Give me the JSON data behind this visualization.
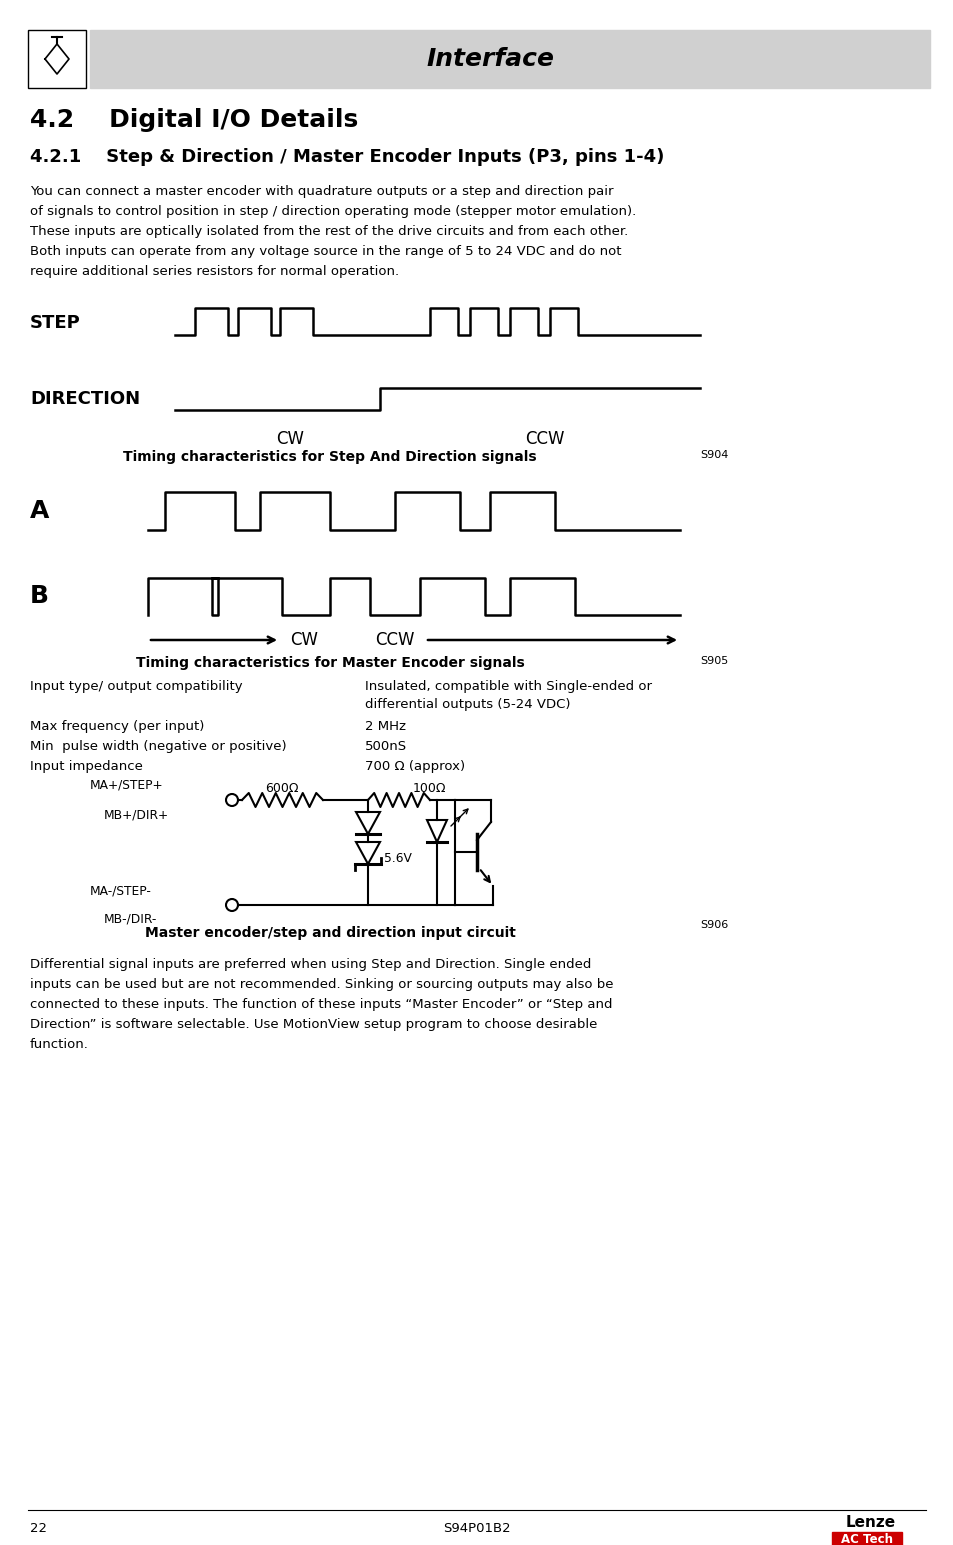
{
  "header_text": "Interface",
  "sec_title": "4.2    Digital I/O Details",
  "subsec_title": "4.2.1    Step & Direction / Master Encoder Inputs (P3, pins 1-4)",
  "body_para": "You can connect a master encoder with quadrature outputs or a step and direction pair\nof signals to control position in step / direction operating mode (stepper motor emulation).\nThese inputs are optically isolated from the rest of the drive circuits and from each other.\nBoth inputs can operate from any voltage source in the range of 5 to 24 VDC and do not\nrequire additional series resistors for normal operation.",
  "step_label": "STEP",
  "dir_label": "DIRECTION",
  "cw1": "CW",
  "ccw1": "CCW",
  "caption1": "Timing characteristics for Step And Direction signals",
  "caption1_ref": "S904",
  "a_label": "A",
  "b_label": "B",
  "cw2": "CW",
  "ccw2": "CCW",
  "caption2": "Timing characteristics for Master Encoder signals",
  "caption2_ref": "S905",
  "spec1_label": "Input type/ output compatibility",
  "spec1_val_line1": "Insulated, compatible with Single-ended or",
  "spec1_val_line2": "differential outputs (5-24 VDC)",
  "spec2_label": "Max frequency (per input)",
  "spec2_val": "2 MHz",
  "spec3_label": "Min  pulse width (negative or positive)",
  "spec3_val": "500nS",
  "spec4_label": "Input impedance",
  "spec4_val": "700 Ω (approx)",
  "circuit_r1": "600Ω",
  "circuit_r2": "100Ω",
  "circuit_zv": "5.6V",
  "ma_plus": "MA+/STEP+",
  "mb_plus": "MB+/DIR+",
  "ma_minus": "MA-/STEP-",
  "mb_minus": "MB-/DIR-",
  "circuit_caption": "Master encoder/step and direction input circuit",
  "circuit_ref": "S906",
  "footer_para": "Differential signal inputs are preferred when using Step and Direction. Single ended\ninputs can be used but are not recommended. Sinking or sourcing outputs may also be\nconnected to these inputs. The function of these inputs “Master Encoder” or “Step and\nDirection” is software selectable. Use MotionView setup program to choose desirable\nfunction.",
  "page_num": "22",
  "page_code": "S94P01B2",
  "bg": "#ffffff",
  "header_bg": "#d0d0d0",
  "lenze_red": "#cc0000"
}
